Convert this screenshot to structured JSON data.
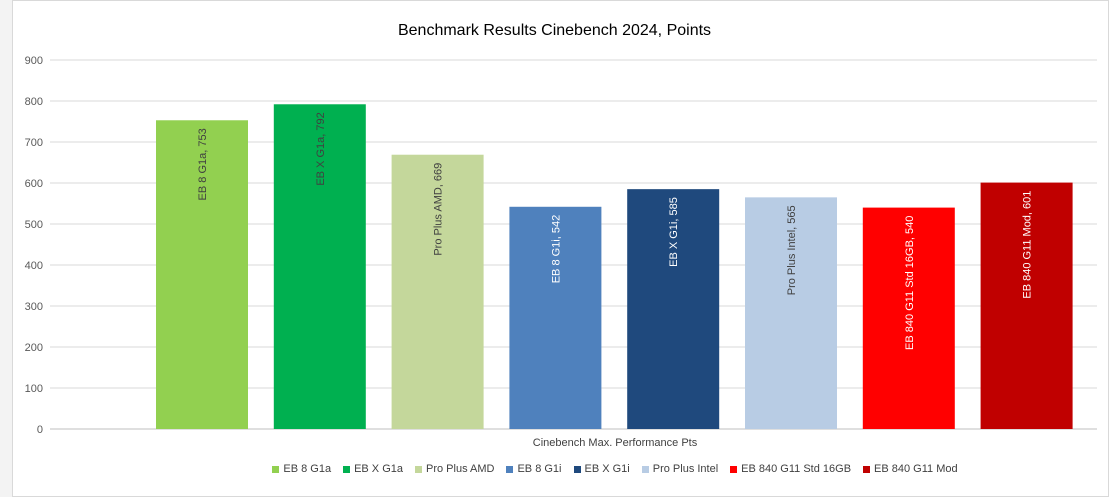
{
  "chart_data": {
    "type": "bar",
    "title": "Benchmark Results Cinebench 2024, Points",
    "xlabel": "Cinebench Max. Performance Pts",
    "ylabel": "",
    "ylim": [
      0,
      900
    ],
    "yticks": [
      0,
      100,
      200,
      300,
      400,
      500,
      600,
      700,
      800,
      900
    ],
    "grid": true,
    "legend_position": "bottom",
    "series": [
      {
        "name": "EB 8 G1a",
        "value": 753,
        "color": "#92d050",
        "label": "EB 8 G1a, 753",
        "label_color": "#404040"
      },
      {
        "name": "EB X G1a",
        "value": 792,
        "color": "#00b050",
        "label": "EB X G1a, 792",
        "label_color": "#404040"
      },
      {
        "name": "Pro Plus AMD",
        "value": 669,
        "color": "#c4d79b",
        "label": "Pro Plus AMD, 669",
        "label_color": "#404040"
      },
      {
        "name": "EB 8 G1i",
        "value": 542,
        "color": "#4f81bd",
        "label": "EB 8 G1i, 542",
        "label_color": "#ffffff"
      },
      {
        "name": "EB X G1i",
        "value": 585,
        "color": "#1f497d",
        "label": "EB X G1i, 585",
        "label_color": "#ffffff"
      },
      {
        "name": "Pro Plus Intel",
        "value": 565,
        "color": "#b8cce4",
        "label": "Pro Plus Intel, 565",
        "label_color": "#404040"
      },
      {
        "name": "EB 840 G11 Std 16GB",
        "value": 540,
        "color": "#ff0000",
        "label": "EB 840 G11 Std 16GB, 540",
        "label_color": "#ffffff"
      },
      {
        "name": "EB 840 G11 Mod",
        "value": 601,
        "color": "#c00000",
        "label": "EB 840 G11 Mod, 601",
        "label_color": "#ffffff"
      }
    ]
  }
}
